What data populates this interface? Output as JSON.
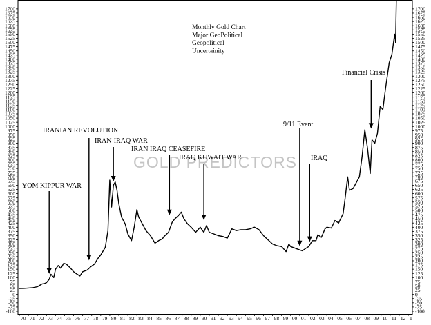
{
  "chart_data": {
    "type": "line",
    "title": "",
    "note_lines": [
      "Monthly Gold Chart",
      "Major GeoPolitical",
      "Geopolitical",
      "Uncertainity"
    ],
    "watermark": "GOLD PREDICTORS",
    "xlabel": "",
    "ylabel": "",
    "xlim": [
      1970,
      2013
    ],
    "ylim": [
      -100,
      1750
    ],
    "y_ticks": [
      -100,
      -75,
      -50,
      -25,
      0,
      25,
      50,
      75,
      100,
      125,
      150,
      175,
      200,
      225,
      250,
      275,
      300,
      325,
      350,
      375,
      400,
      425,
      450,
      475,
      500,
      525,
      550,
      575,
      600,
      625,
      650,
      675,
      700,
      725,
      750,
      775,
      800,
      825,
      850,
      875,
      900,
      925,
      950,
      975,
      1000,
      1025,
      1050,
      1075,
      1100,
      1125,
      1150,
      1175,
      1200,
      1225,
      1250,
      1275,
      1300,
      1325,
      1350,
      1375,
      1400,
      1425,
      1450,
      1475,
      1500,
      1525,
      1550,
      1575,
      1600,
      1625,
      1650,
      1675,
      1700
    ],
    "y_tick_labels": [
      "-100",
      "-75",
      "-50",
      "-25",
      "0",
      "25",
      "50",
      "75",
      "100",
      "125",
      "150",
      "175",
      "200",
      "225",
      "250",
      "275",
      "300",
      "325",
      "350",
      "375",
      "400",
      "425",
      "450",
      "475",
      "500",
      "525",
      "550",
      "575",
      "600",
      "625",
      "650",
      "675",
      "700",
      "725",
      "750",
      "775",
      "800",
      "825",
      "850",
      "875",
      "900",
      "925",
      "950",
      "975",
      "1000",
      "1025",
      "1050",
      "1075",
      "1100",
      "1125",
      "1150",
      "1175",
      "1200",
      "1225",
      "1250",
      "1275",
      "1300",
      "1325",
      "1350",
      "1375",
      "1400",
      "1425",
      "1450",
      "1475",
      "1500",
      "1525",
      "1550",
      "1575",
      "1600",
      "1625",
      "1650",
      "1675",
      "1700"
    ],
    "x_tick_labels": [
      "70",
      "71",
      "72",
      "73",
      "74",
      "75",
      "76",
      "77",
      "78",
      "79",
      "80",
      "81",
      "82",
      "83",
      "84",
      "85",
      "86",
      "87",
      "88",
      "89",
      "90",
      "91",
      "92",
      "93",
      "94",
      "95",
      "96",
      "97",
      "98",
      "99",
      "00",
      "01",
      "02",
      "03",
      "04",
      "05",
      "06",
      "07",
      "08",
      "09",
      "10",
      "11",
      "12",
      "1"
    ],
    "grid": false,
    "series": [
      {
        "color": "#000000",
        "points": [
          [
            1970.0,
            35
          ],
          [
            1970.5,
            36
          ],
          [
            1971.0,
            38
          ],
          [
            1971.5,
            40
          ],
          [
            1972.0,
            46
          ],
          [
            1972.5,
            62
          ],
          [
            1972.8,
            65
          ],
          [
            1973.0,
            70
          ],
          [
            1973.3,
            90
          ],
          [
            1973.5,
            120
          ],
          [
            1973.8,
            100
          ],
          [
            1974.0,
            150
          ],
          [
            1974.3,
            172
          ],
          [
            1974.6,
            155
          ],
          [
            1974.9,
            185
          ],
          [
            1975.2,
            180
          ],
          [
            1975.6,
            160
          ],
          [
            1976.0,
            135
          ],
          [
            1976.4,
            120
          ],
          [
            1976.7,
            110
          ],
          [
            1977.0,
            135
          ],
          [
            1977.5,
            145
          ],
          [
            1977.9,
            165
          ],
          [
            1978.3,
            180
          ],
          [
            1978.7,
            215
          ],
          [
            1979.0,
            235
          ],
          [
            1979.5,
            280
          ],
          [
            1979.8,
            380
          ],
          [
            1980.0,
            680
          ],
          [
            1980.1,
            600
          ],
          [
            1980.2,
            520
          ],
          [
            1980.4,
            650
          ],
          [
            1980.6,
            670
          ],
          [
            1980.8,
            620
          ],
          [
            1981.0,
            540
          ],
          [
            1981.3,
            460
          ],
          [
            1981.7,
            420
          ],
          [
            1982.0,
            360
          ],
          [
            1982.4,
            320
          ],
          [
            1982.7,
            400
          ],
          [
            1983.0,
            505
          ],
          [
            1983.2,
            460
          ],
          [
            1983.6,
            420
          ],
          [
            1984.0,
            380
          ],
          [
            1984.5,
            350
          ],
          [
            1985.0,
            305
          ],
          [
            1985.4,
            320
          ],
          [
            1985.8,
            330
          ],
          [
            1986.0,
            345
          ],
          [
            1986.5,
            370
          ],
          [
            1986.9,
            430
          ],
          [
            1987.2,
            450
          ],
          [
            1987.6,
            470
          ],
          [
            1987.9,
            490
          ],
          [
            1988.2,
            450
          ],
          [
            1988.6,
            420
          ],
          [
            1989.0,
            400
          ],
          [
            1989.5,
            370
          ],
          [
            1990.0,
            400
          ],
          [
            1990.4,
            370
          ],
          [
            1990.7,
            410
          ],
          [
            1991.0,
            370
          ],
          [
            1991.5,
            360
          ],
          [
            1992.0,
            350
          ],
          [
            1992.5,
            345
          ],
          [
            1993.0,
            335
          ],
          [
            1993.5,
            390
          ],
          [
            1994.0,
            380
          ],
          [
            1994.5,
            385
          ],
          [
            1995.0,
            385
          ],
          [
            1995.5,
            390
          ],
          [
            1996.0,
            400
          ],
          [
            1996.5,
            385
          ],
          [
            1997.0,
            350
          ],
          [
            1997.5,
            325
          ],
          [
            1998.0,
            300
          ],
          [
            1998.5,
            290
          ],
          [
            1999.0,
            285
          ],
          [
            1999.5,
            255
          ],
          [
            1999.8,
            300
          ],
          [
            2000.0,
            285
          ],
          [
            2000.5,
            275
          ],
          [
            2001.0,
            265
          ],
          [
            2001.3,
            260
          ],
          [
            2001.7,
            275
          ],
          [
            2002.0,
            285
          ],
          [
            2002.4,
            320
          ],
          [
            2002.8,
            320
          ],
          [
            2003.0,
            355
          ],
          [
            2003.4,
            340
          ],
          [
            2003.8,
            390
          ],
          [
            2004.0,
            400
          ],
          [
            2004.5,
            395
          ],
          [
            2004.9,
            440
          ],
          [
            2005.3,
            425
          ],
          [
            2005.8,
            480
          ],
          [
            2006.0,
            560
          ],
          [
            2006.3,
            700
          ],
          [
            2006.5,
            620
          ],
          [
            2006.9,
            630
          ],
          [
            2007.2,
            660
          ],
          [
            2007.6,
            700
          ],
          [
            2007.9,
            820
          ],
          [
            2008.2,
            980
          ],
          [
            2008.5,
            870
          ],
          [
            2008.8,
            720
          ],
          [
            2009.0,
            920
          ],
          [
            2009.3,
            900
          ],
          [
            2009.6,
            960
          ],
          [
            2009.9,
            1120
          ],
          [
            2010.2,
            1100
          ],
          [
            2010.5,
            1230
          ],
          [
            2010.9,
            1380
          ],
          [
            2011.2,
            1430
          ],
          [
            2011.5,
            1550
          ],
          [
            2011.6,
            1500
          ],
          [
            2011.7,
            1800
          ]
        ]
      }
    ],
    "annotations": [
      {
        "label": "YOM KIPPUR WAR",
        "x": 1973.3,
        "y": 110
      },
      {
        "label": "IRANIAN REVOLUTION",
        "x": 1977.7,
        "y": 190
      },
      {
        "label": "IRAN-IRAQ WAR",
        "x": 1980.4,
        "y": 660
      },
      {
        "label": "IRAN IRAQ CEASEFIRE",
        "x": 1986.6,
        "y": 460
      },
      {
        "label": "IRAQ KUWAIT WAR",
        "x": 1990.4,
        "y": 430
      },
      {
        "label": "9/11 Event",
        "x": 2001.0,
        "y": 275
      },
      {
        "label": "IRAQ",
        "x": 2002.1,
        "y": 300
      },
      {
        "label": "Financial Crisis",
        "x": 2008.9,
        "y": 975
      }
    ]
  }
}
